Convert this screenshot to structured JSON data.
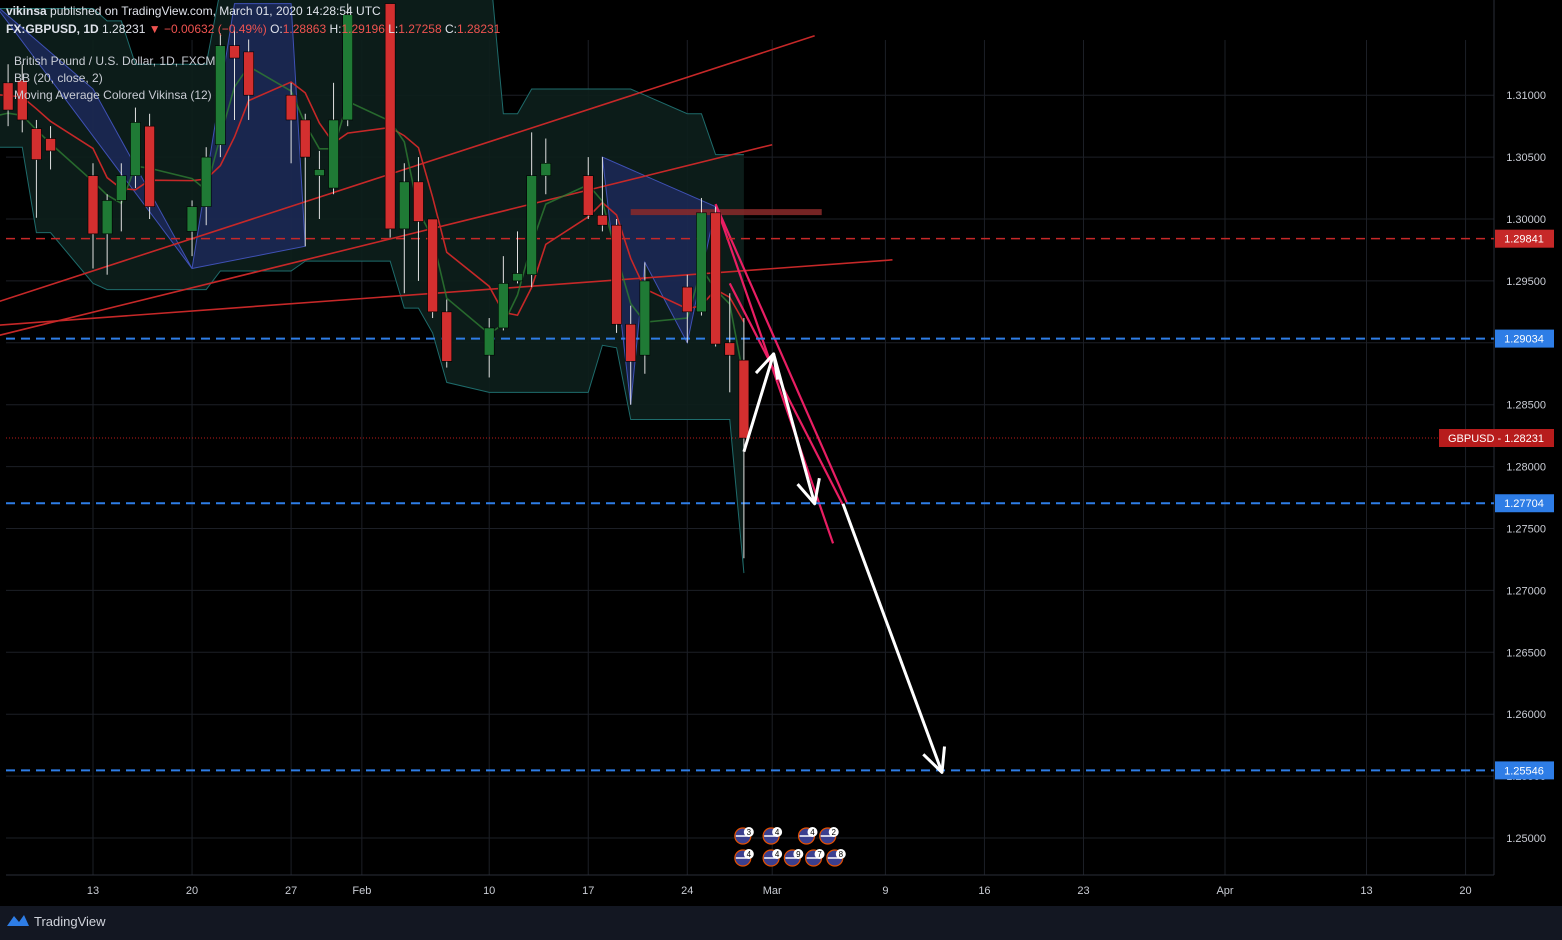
{
  "header": {
    "author": "vikinsa",
    "published_text": "published on TradingView.com, March 01, 2020 14:28:54 UTC"
  },
  "ohlc": {
    "symbol": "FX:GBPUSD, 1D",
    "last": "1.28231",
    "change": "▼ −0.00632 (−0.49%)",
    "o_label": "O:",
    "o": "1.28863",
    "h_label": "H:",
    "h": "1.29196",
    "l_label": "L:",
    "l": "1.27258",
    "c_label": "C:",
    "c": "1.28231"
  },
  "legend": {
    "title": "British Pound / U.S. Dollar, 1D, FXCM",
    "bb": "BB (20, close, 2)",
    "ma": "Moving Average Colored Vikinsa (12)"
  },
  "footer": {
    "brand": "TradingView"
  },
  "colors": {
    "bull": "#26a69a",
    "bull_fill": "#1f7a35",
    "bear": "#d32f2f",
    "blue_level": "#2e7de6",
    "red_level": "#c62828",
    "grid": "#1c1f26",
    "pink": "#e91e63",
    "arrow": "#ffffff"
  },
  "chart_data": {
    "type": "candlestick",
    "symbol": "GBPUSD",
    "timeframe": "1D",
    "ylim": [
      1.2435,
      1.3174
    ],
    "y_ticks": [
      1.25,
      1.255,
      1.26,
      1.265,
      1.27,
      1.275,
      1.28,
      1.285,
      1.29,
      1.295,
      1.3,
      1.305,
      1.31
    ],
    "y_tick_labels": [
      "1.25000",
      "1.25500",
      "1.26000",
      "1.26500",
      "1.27000",
      "1.27500",
      "1.28000",
      "1.28500",
      "1.29000",
      "1.29500",
      "1.30000",
      "1.30500",
      "1.31000"
    ],
    "x_ticks": [
      {
        "label": "13",
        "day": 13
      },
      {
        "label": "20",
        "day": 20
      },
      {
        "label": "27",
        "day": 27
      },
      {
        "label": "Feb",
        "day": 32
      },
      {
        "label": "10",
        "day": 41
      },
      {
        "label": "17",
        "day": 48
      },
      {
        "label": "24",
        "day": 55
      },
      {
        "label": "Mar",
        "day": 61
      },
      {
        "label": "9",
        "day": 69
      },
      {
        "label": "16",
        "day": 76
      },
      {
        "label": "23",
        "day": 83
      },
      {
        "label": "Apr",
        "day": 93
      },
      {
        "label": "13",
        "day": 103
      },
      {
        "label": "20",
        "day": 110
      }
    ],
    "candles": [
      {
        "day": 6,
        "o": 1.3118,
        "h": 1.3135,
        "c": 1.3083,
        "l": 1.307
      },
      {
        "day": 7,
        "o": 1.311,
        "h": 1.3125,
        "c": 1.3088,
        "l": 1.3075
      },
      {
        "day": 8,
        "o": 1.3112,
        "h": 1.3125,
        "c": 1.308,
        "l": 1.307
      },
      {
        "day": 9,
        "o": 1.3073,
        "h": 1.308,
        "c": 1.3048,
        "l": 1.3001
      },
      {
        "day": 10,
        "o": 1.3065,
        "h": 1.3075,
        "c": 1.3055,
        "l": 1.304
      },
      {
        "day": 13,
        "o": 1.3035,
        "h": 1.3045,
        "c": 1.2988,
        "l": 1.296
      },
      {
        "day": 14,
        "o": 1.2988,
        "h": 1.302,
        "c": 1.3015,
        "l": 1.2955
      },
      {
        "day": 15,
        "o": 1.3015,
        "h": 1.3045,
        "c": 1.3035,
        "l": 1.299
      },
      {
        "day": 16,
        "o": 1.3035,
        "h": 1.309,
        "c": 1.3078,
        "l": 1.3025
      },
      {
        "day": 17,
        "o": 1.3075,
        "h": 1.3085,
        "c": 1.301,
        "l": 1.3
      },
      {
        "day": 20,
        "o": 1.299,
        "h": 1.3015,
        "c": 1.301,
        "l": 1.297
      },
      {
        "day": 21,
        "o": 1.301,
        "h": 1.3058,
        "c": 1.305,
        "l": 1.2995
      },
      {
        "day": 22,
        "o": 1.306,
        "h": 1.315,
        "c": 1.314,
        "l": 1.305
      },
      {
        "day": 23,
        "o": 1.314,
        "h": 1.3155,
        "c": 1.313,
        "l": 1.308
      },
      {
        "day": 24,
        "o": 1.3135,
        "h": 1.3145,
        "c": 1.31,
        "l": 1.308
      },
      {
        "day": 27,
        "o": 1.31,
        "h": 1.311,
        "c": 1.308,
        "l": 1.3045
      },
      {
        "day": 28,
        "o": 1.308,
        "h": 1.3085,
        "c": 1.305,
        "l": 1.2978
      },
      {
        "day": 29,
        "o": 1.3035,
        "h": 1.3055,
        "c": 1.304,
        "l": 1.3
      },
      {
        "day": 30,
        "o": 1.3025,
        "h": 1.311,
        "c": 1.308,
        "l": 1.302
      },
      {
        "day": 31,
        "o": 1.308,
        "h": 1.3174,
        "c": 1.3165,
        "l": 1.3075
      },
      {
        "day": 34,
        "o": 1.3174,
        "h": 1.3174,
        "c": 1.2992,
        "l": 1.2985
      },
      {
        "day": 35,
        "o": 1.2992,
        "h": 1.3045,
        "c": 1.303,
        "l": 1.294
      },
      {
        "day": 36,
        "o": 1.303,
        "h": 1.305,
        "c": 1.2998,
        "l": 1.295
      },
      {
        "day": 37,
        "o": 1.3,
        "h": 1.3,
        "c": 1.2925,
        "l": 1.292
      },
      {
        "day": 38,
        "o": 1.2925,
        "h": 1.2935,
        "c": 1.2885,
        "l": 1.288
      },
      {
        "day": 41,
        "o": 1.289,
        "h": 1.292,
        "c": 1.2912,
        "l": 1.2872
      },
      {
        "day": 42,
        "o": 1.2912,
        "h": 1.297,
        "c": 1.2948,
        "l": 1.291
      },
      {
        "day": 43,
        "o": 1.295,
        "h": 1.299,
        "c": 1.2956,
        "l": 1.2948
      },
      {
        "day": 44,
        "o": 1.2955,
        "h": 1.307,
        "c": 1.3035,
        "l": 1.2945
      },
      {
        "day": 45,
        "o": 1.3035,
        "h": 1.3065,
        "c": 1.3045,
        "l": 1.302
      },
      {
        "day": 48,
        "o": 1.3035,
        "h": 1.305,
        "c": 1.3003,
        "l": 1.3
      },
      {
        "day": 49,
        "o": 1.3003,
        "h": 1.305,
        "c": 1.2995,
        "l": 1.299
      },
      {
        "day": 50,
        "o": 1.2995,
        "h": 1.3,
        "c": 1.2915,
        "l": 1.2908
      },
      {
        "day": 51,
        "o": 1.2915,
        "h": 1.293,
        "c": 1.2885,
        "l": 1.285
      },
      {
        "day": 52,
        "o": 1.289,
        "h": 1.2965,
        "c": 1.295,
        "l": 1.2875
      },
      {
        "day": 55,
        "o": 1.2945,
        "h": 1.2955,
        "c": 1.2925,
        "l": 1.29
      },
      {
        "day": 56,
        "o": 1.2925,
        "h": 1.3017,
        "c": 1.3005,
        "l": 1.2922
      },
      {
        "day": 57,
        "o": 1.3005,
        "h": 1.301,
        "c": 1.2899,
        "l": 1.2897
      },
      {
        "day": 58,
        "o": 1.29,
        "h": 1.294,
        "c": 1.289,
        "l": 1.286
      },
      {
        "day": 59,
        "o": 1.2886,
        "h": 1.292,
        "c": 1.2823,
        "l": 1.2726
      }
    ],
    "levels": [
      {
        "value": 1.29841,
        "label": "1.29841",
        "color": "red",
        "style": "dashed"
      },
      {
        "value": 1.29034,
        "label": "1.29034",
        "color": "blue",
        "style": "dashed"
      },
      {
        "value": 1.27704,
        "label": "1.27704",
        "color": "blue",
        "style": "dashed"
      },
      {
        "value": 1.25546,
        "label": "1.25546",
        "color": "blue",
        "style": "dashed"
      }
    ],
    "current_price": {
      "value": 1.28231,
      "label": "GBPUSD - 1.28231"
    },
    "projection_path": [
      {
        "day": 59.0,
        "price": 1.2812
      },
      {
        "day": 61.1,
        "price": 1.2891
      },
      {
        "day": 64.0,
        "price": 1.277
      }
    ],
    "projection_path_2": [
      {
        "day": 66.0,
        "price": 1.277
      },
      {
        "day": 73.0,
        "price": 1.2553
      }
    ],
    "event_markers_top": [
      "3",
      "4",
      "4",
      "2"
    ],
    "event_markers_bottom": [
      "4",
      "4",
      "9",
      "7",
      "8"
    ]
  }
}
